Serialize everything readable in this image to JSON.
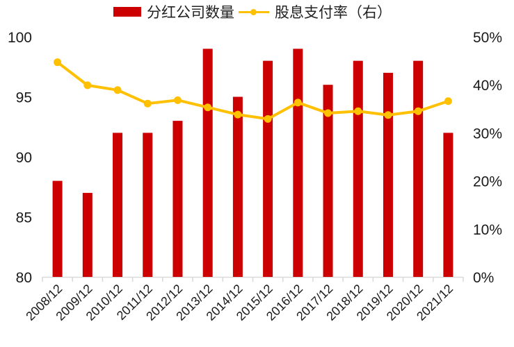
{
  "legend": {
    "bar_label": "分红公司数量",
    "line_label": "股息支付率（右）"
  },
  "colors": {
    "bar": "#cc0000",
    "line": "#ffc000",
    "axis": "#d9d9d9"
  },
  "axes": {
    "left_ticks": [
      "100",
      "95",
      "90",
      "85",
      "80"
    ],
    "right_ticks": [
      "50%",
      "40%",
      "30%",
      "20%",
      "10%",
      "0%"
    ]
  },
  "chart_data": {
    "type": "bar",
    "title": "",
    "categories": [
      "2008/12",
      "2009/12",
      "2010/12",
      "2011/12",
      "2012/12",
      "2013/12",
      "2014/12",
      "2015/12",
      "2016/12",
      "2017/12",
      "2018/12",
      "2019/12",
      "2020/12",
      "2021/12"
    ],
    "series": [
      {
        "name": "分红公司数量",
        "type": "bar",
        "axis": "left",
        "values": [
          88,
          87,
          92,
          92,
          93,
          99,
          95,
          98,
          99,
          96,
          98,
          97,
          98,
          92
        ]
      },
      {
        "name": "股息支付率（右）",
        "type": "line",
        "axis": "right",
        "values": [
          44.7,
          39.9,
          38.9,
          36.1,
          36.8,
          35.3,
          33.8,
          32.9,
          36.3,
          34.1,
          34.5,
          33.7,
          34.5,
          36.6
        ]
      }
    ],
    "xlabel": "",
    "ylabel": "",
    "ylim": [
      80,
      100
    ],
    "y2lim": [
      0,
      50
    ],
    "y2_format": "percent",
    "grid": false,
    "legend_position": "top"
  }
}
